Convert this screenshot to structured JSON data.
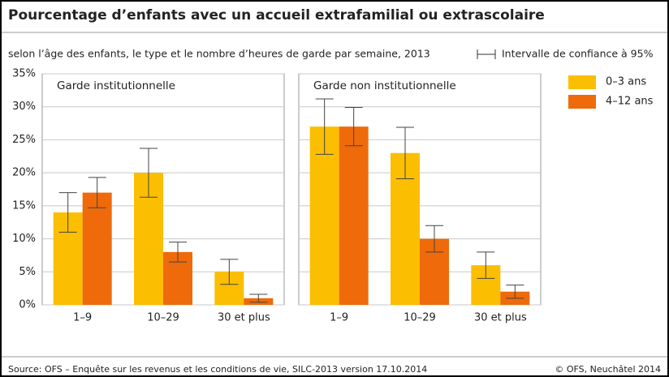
{
  "chart_data": {
    "type": "bar",
    "title": "Pourcentage d’enfants avec un accueil extrafamilial ou extrascolaire",
    "subtitle": "selon l’âge des enfants, le type et le nombre d’heures de garde par semaine, 2013",
    "ci_label": "Intervalle de confiance à 95%",
    "ylim": [
      0,
      35
    ],
    "yticks": [
      {
        "value": 0,
        "label": "0%"
      },
      {
        "value": 5,
        "label": "5%"
      },
      {
        "value": 10,
        "label": "10%"
      },
      {
        "value": 15,
        "label": "15%"
      },
      {
        "value": 20,
        "label": "20%"
      },
      {
        "value": 25,
        "label": "25%"
      },
      {
        "value": 30,
        "label": "30%"
      },
      {
        "value": 35,
        "label": "35%"
      }
    ],
    "grid": true,
    "legend": "top-right",
    "series": [
      {
        "name": "0–3 ans",
        "color": "#fbbe00"
      },
      {
        "name": "4–12 ans",
        "color": "#ee6a0a"
      }
    ],
    "panels": [
      {
        "title": "Garde institutionnelle",
        "categories": [
          "1–9",
          "10–29",
          "30 et plus"
        ],
        "series": [
          {
            "values": [
              14,
              20,
              5
            ],
            "errors": [
              3,
              3.7,
              1.9
            ]
          },
          {
            "values": [
              17,
              8,
              1
            ],
            "errors": [
              2.3,
              1.5,
              0.6
            ]
          }
        ]
      },
      {
        "title": "Garde non institutionnelle",
        "categories": [
          "1–9",
          "10–29",
          "30 et plus"
        ],
        "series": [
          {
            "values": [
              27,
              23,
              6
            ],
            "errors": [
              4.2,
              3.9,
              2
            ]
          },
          {
            "values": [
              27,
              10,
              2
            ],
            "errors": [
              2.9,
              2,
              1
            ]
          }
        ]
      }
    ],
    "source": "Source: OFS – Enquête sur les revenus et les conditions de vie, SILC-2013 version 17.10.2014",
    "credit": "© OFS, Neuchâtel 2014"
  }
}
